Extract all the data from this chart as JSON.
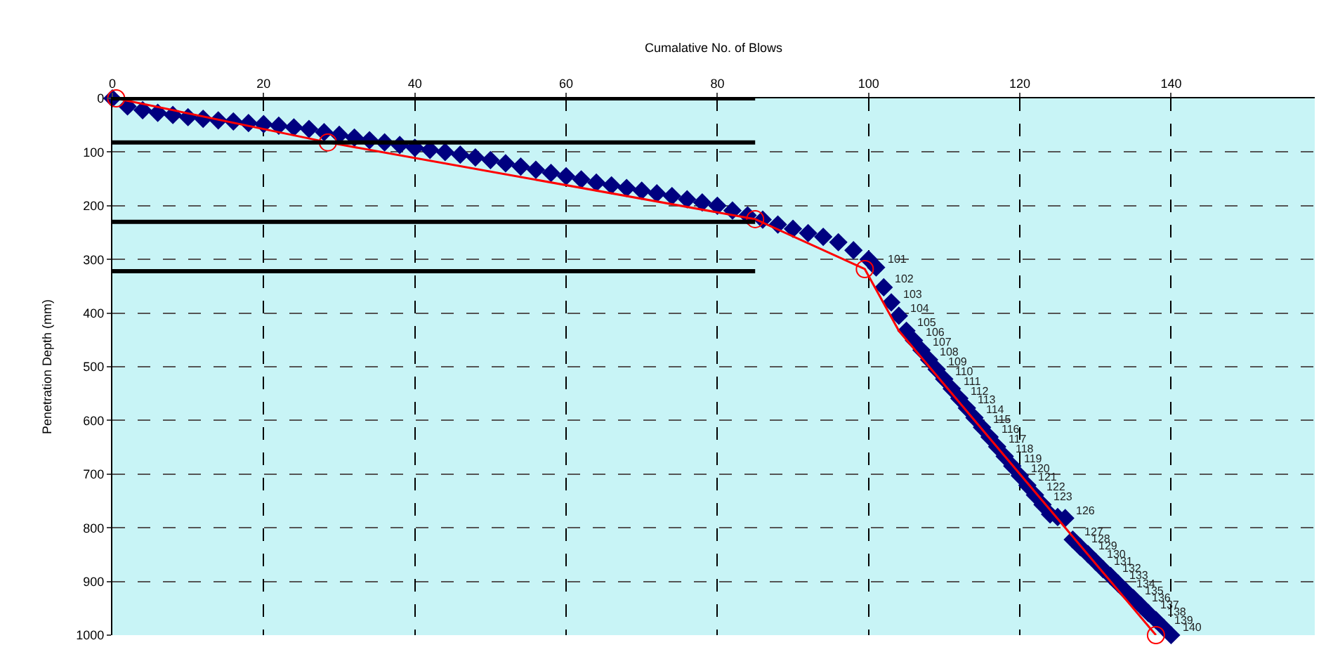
{
  "chart_data": {
    "type": "scatter",
    "xlabel": "Cumalative No. of Blows",
    "ylabel": "Penetration Depth (mm)",
    "xlim": [
      0,
      159
    ],
    "xticks": [
      0,
      20,
      40,
      60,
      80,
      100,
      120,
      140
    ],
    "ylim": [
      1000,
      0
    ],
    "yticks": [
      0,
      100,
      200,
      300,
      400,
      500,
      600,
      700,
      800,
      900,
      1000
    ],
    "grid": true,
    "series": [
      {
        "marker": "diamond",
        "color": "#000080",
        "x": [
          0,
          2,
          4,
          6,
          8,
          10,
          12,
          14,
          16,
          18,
          20,
          22,
          24,
          26,
          28,
          30,
          32,
          34,
          36,
          38,
          40,
          42,
          44,
          46,
          48,
          50,
          52,
          54,
          56,
          58,
          60,
          62,
          64,
          66,
          68,
          70,
          72,
          74,
          76,
          78,
          80,
          82,
          84,
          86,
          88,
          90,
          92,
          94,
          96,
          98,
          100,
          101,
          102,
          103,
          104,
          105,
          106,
          107,
          108,
          109,
          110,
          111,
          112,
          113,
          114,
          115,
          116,
          117,
          118,
          119,
          120,
          121,
          122,
          123,
          124,
          125,
          126,
          127,
          128,
          129,
          130,
          131,
          132,
          133,
          134,
          135,
          136,
          137,
          138,
          139,
          140
        ],
        "values": [
          0,
          15,
          22,
          27,
          31,
          35,
          38,
          41,
          43,
          46,
          48,
          51,
          54,
          57,
          63,
          68,
          73,
          78,
          82,
          87,
          92,
          96,
          100,
          105,
          110,
          115,
          121,
          127,
          133,
          139,
          145,
          151,
          157,
          162,
          167,
          172,
          177,
          182,
          188,
          194,
          200,
          209,
          218,
          226,
          235,
          243,
          251,
          258,
          268,
          283,
          300,
          315,
          352,
          380,
          405,
          433,
          451,
          469,
          487,
          505,
          523,
          541,
          559,
          577,
          595,
          613,
          631,
          649,
          667,
          685,
          703,
          721,
          739,
          757,
          775,
          780,
          782,
          822,
          836,
          849,
          863,
          877,
          890,
          904,
          918,
          931,
          945,
          959,
          972,
          986,
          1000
        ]
      },
      {
        "type": "line",
        "marker": "none",
        "color": "#ff0000",
        "x": [
          0.5,
          28.5,
          85,
          99.5,
          104,
          138
        ],
        "values": [
          0,
          82,
          225,
          318,
          433,
          1000
        ]
      },
      {
        "type": "scatter",
        "marker": "circle",
        "color": "#ff0000",
        "x": [
          0.5,
          28.5,
          85,
          99.5,
          138
        ],
        "values": [
          0,
          82,
          225,
          318,
          1000
        ]
      },
      {
        "type": "line",
        "marker": "none",
        "color": "#000000",
        "x": [
          0,
          85
        ],
        "values": [
          0,
          0
        ]
      },
      {
        "type": "line",
        "marker": "none",
        "color": "#000000",
        "x": [
          0,
          85
        ],
        "values": [
          82,
          82
        ]
      },
      {
        "type": "line",
        "marker": "none",
        "color": "#000000",
        "x": [
          0,
          85
        ],
        "values": [
          230,
          230
        ]
      },
      {
        "type": "line",
        "marker": "none",
        "color": "#000000",
        "x": [
          0,
          85
        ],
        "values": [
          322,
          322
        ]
      }
    ],
    "annotations": [
      {
        "text": "101",
        "x": 101,
        "y": 315
      },
      {
        "text": "102",
        "x": 102,
        "y": 352
      },
      {
        "text": "103",
        "x": 103,
        "y": 380
      },
      {
        "text": "104",
        "x": 104,
        "y": 405
      },
      {
        "text": "105",
        "x": 105,
        "y": 433
      },
      {
        "text": "106",
        "x": 106,
        "y": 451
      },
      {
        "text": "107",
        "x": 107,
        "y": 469
      },
      {
        "text": "108",
        "x": 108,
        "y": 487
      },
      {
        "text": "109",
        "x": 109,
        "y": 505
      },
      {
        "text": "110",
        "x": 110,
        "y": 523
      },
      {
        "text": "111",
        "x": 111,
        "y": 541
      },
      {
        "text": "112",
        "x": 112,
        "y": 559
      },
      {
        "text": "113",
        "x": 113,
        "y": 577
      },
      {
        "text": "114",
        "x": 114,
        "y": 595
      },
      {
        "text": "115",
        "x": 115,
        "y": 613
      },
      {
        "text": "116",
        "x": 116,
        "y": 631
      },
      {
        "text": "117",
        "x": 117,
        "y": 649
      },
      {
        "text": "118",
        "x": 118,
        "y": 667
      },
      {
        "text": "119",
        "x": 119,
        "y": 685
      },
      {
        "text": "120",
        "x": 120,
        "y": 703
      },
      {
        "text": "121",
        "x": 121,
        "y": 721
      },
      {
        "text": "122",
        "x": 122,
        "y": 739
      },
      {
        "text": "123",
        "x": 123,
        "y": 757
      },
      {
        "text": "126",
        "x": 126,
        "y": 782
      },
      {
        "text": "127",
        "x": 127,
        "y": 822
      },
      {
        "text": "128",
        "x": 128,
        "y": 836
      },
      {
        "text": "129",
        "x": 129,
        "y": 849
      },
      {
        "text": "130",
        "x": 130,
        "y": 863
      },
      {
        "text": "131",
        "x": 131,
        "y": 877
      },
      {
        "text": "132",
        "x": 132,
        "y": 890
      },
      {
        "text": "133",
        "x": 133,
        "y": 904
      },
      {
        "text": "134",
        "x": 134,
        "y": 918
      },
      {
        "text": "135",
        "x": 135,
        "y": 931
      },
      {
        "text": "136",
        "x": 136,
        "y": 945
      },
      {
        "text": "137",
        "x": 137,
        "y": 959
      },
      {
        "text": "138",
        "x": 138,
        "y": 972
      },
      {
        "text": "139",
        "x": 139,
        "y": 986
      },
      {
        "text": "140",
        "x": 140,
        "y": 1000
      }
    ]
  }
}
